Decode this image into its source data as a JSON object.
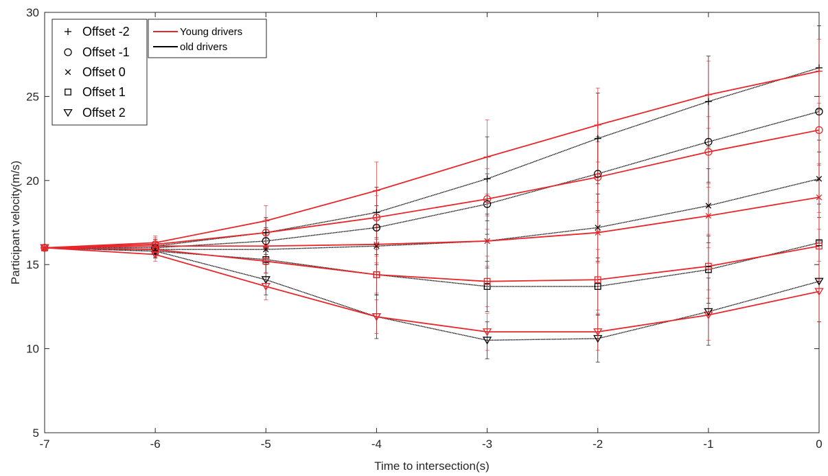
{
  "chart_data": {
    "type": "line",
    "title": "",
    "xlabel": "Time to intersection(s)",
    "ylabel": "Participant velocity(m/s)",
    "xlim": [
      -7,
      0
    ],
    "ylim": [
      5,
      30
    ],
    "x": [
      -7,
      -6,
      -5,
      -4,
      -3,
      -2,
      -1,
      0
    ],
    "x_ticks": [
      -7,
      -6,
      -5,
      -4,
      -3,
      -2,
      -1,
      0
    ],
    "y_ticks": [
      5,
      10,
      15,
      20,
      25,
      30
    ],
    "grid": false,
    "marker_legend": {
      "placement": "top-left",
      "entries": [
        {
          "label": "Offset -2",
          "marker": "plus"
        },
        {
          "label": "Offset -1",
          "marker": "circle"
        },
        {
          "label": "Offset 0",
          "marker": "cross"
        },
        {
          "label": "Offset 1",
          "marker": "square"
        },
        {
          "label": "Offset 2",
          "marker": "triangle-down"
        }
      ]
    },
    "color_legend": {
      "placement": "top-left",
      "entries": [
        {
          "label": "Young drivers",
          "color": "#e8262a"
        },
        {
          "label": "old drivers",
          "color": "#000000"
        }
      ]
    },
    "series": [
      {
        "group": "Young drivers",
        "offset": "Offset -2",
        "marker": "plus",
        "color": "#e8262a",
        "values": [
          16.0,
          16.3,
          17.6,
          19.4,
          21.4,
          23.3,
          25.1,
          26.5
        ],
        "err": [
          0,
          0.4,
          0.9,
          1.7,
          2.2,
          2.2,
          2.0,
          1.9
        ]
      },
      {
        "group": "Young drivers",
        "offset": "Offset -1",
        "marker": "circle",
        "color": "#e8262a",
        "values": [
          16.0,
          16.2,
          16.9,
          17.8,
          18.9,
          20.2,
          21.7,
          23.0
        ],
        "err": [
          0,
          0.4,
          0.8,
          1.3,
          1.8,
          2.1,
          2.1,
          2.0
        ]
      },
      {
        "group": "Young drivers",
        "offset": "Offset 0",
        "marker": "cross",
        "color": "#e8262a",
        "values": [
          16.0,
          16.1,
          16.1,
          16.2,
          16.4,
          16.9,
          17.9,
          19.0
        ],
        "err": [
          0,
          0.4,
          0.7,
          1.1,
          1.5,
          1.8,
          1.9,
          1.9
        ]
      },
      {
        "group": "Young drivers",
        "offset": "Offset 1",
        "marker": "square",
        "color": "#e8262a",
        "values": [
          16.0,
          15.9,
          15.2,
          14.4,
          14.0,
          14.1,
          14.9,
          16.1
        ],
        "err": [
          0,
          0.4,
          0.7,
          1.1,
          1.5,
          1.8,
          1.9,
          2.0
        ]
      },
      {
        "group": "Young drivers",
        "offset": "Offset 2",
        "marker": "triangle-down",
        "color": "#e8262a",
        "values": [
          16.0,
          15.6,
          13.7,
          11.9,
          11.0,
          11.0,
          12.0,
          13.4
        ],
        "err": [
          0,
          0.4,
          0.8,
          1.0,
          1.1,
          1.1,
          1.5,
          1.8
        ]
      },
      {
        "group": "old drivers",
        "offset": "Offset -2",
        "marker": "plus",
        "color": "#000000",
        "values": [
          16.0,
          16.1,
          16.9,
          18.1,
          20.1,
          22.5,
          24.7,
          26.7
        ],
        "err": [
          0,
          0.4,
          0.9,
          1.5,
          2.5,
          2.7,
          2.7,
          2.5
        ]
      },
      {
        "group": "old drivers",
        "offset": "Offset -1",
        "marker": "circle",
        "color": "#000000",
        "values": [
          16.0,
          16.0,
          16.4,
          17.2,
          18.6,
          20.4,
          22.3,
          24.1
        ],
        "err": [
          0,
          0.4,
          0.8,
          1.3,
          1.8,
          2.2,
          2.4,
          2.4
        ]
      },
      {
        "group": "old drivers",
        "offset": "Offset 0",
        "marker": "cross",
        "color": "#000000",
        "values": [
          16.0,
          15.9,
          15.9,
          16.1,
          16.4,
          17.2,
          18.5,
          20.1
        ],
        "err": [
          0,
          0.4,
          0.7,
          1.1,
          1.6,
          2.0,
          2.2,
          2.3
        ]
      },
      {
        "group": "old drivers",
        "offset": "Offset 1",
        "marker": "square",
        "color": "#000000",
        "values": [
          16.0,
          15.8,
          15.3,
          14.4,
          13.7,
          13.7,
          14.7,
          16.3
        ],
        "err": [
          0,
          0.4,
          0.8,
          1.2,
          1.5,
          1.7,
          2.0,
          2.3
        ]
      },
      {
        "group": "old drivers",
        "offset": "Offset 2",
        "marker": "triangle-down",
        "color": "#000000",
        "values": [
          16.0,
          15.8,
          14.1,
          11.9,
          10.5,
          10.6,
          12.2,
          14.0
        ],
        "err": [
          0,
          0.4,
          0.9,
          1.3,
          1.1,
          1.4,
          2.0,
          2.4
        ]
      }
    ]
  }
}
